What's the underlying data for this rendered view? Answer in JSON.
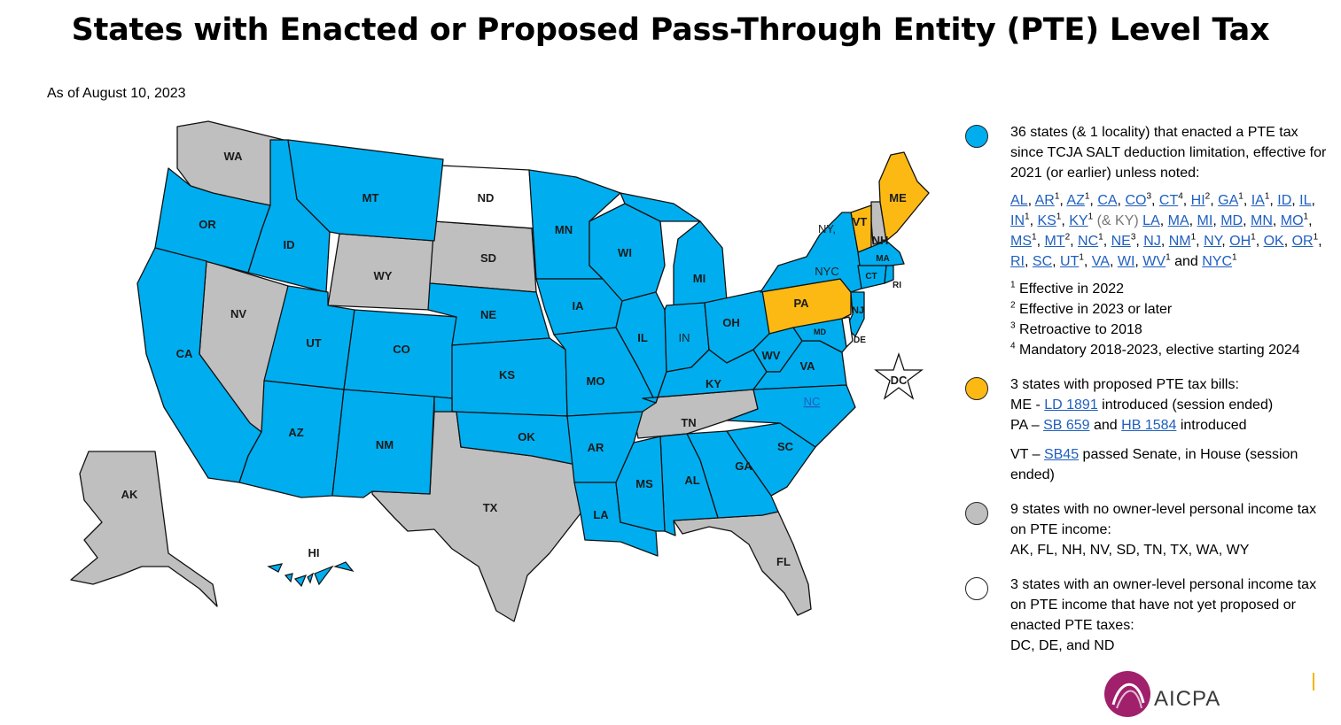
{
  "title": "States with Enacted or Proposed Pass-Through Entity (PTE) Level Tax",
  "as_of": "As of August 10, 2023",
  "colors": {
    "enacted": "#00aeef",
    "proposed": "#fdb913",
    "no_tax": "#bfbfbf",
    "none": "#ffffff",
    "link": "#1f5fbf"
  },
  "map": {
    "labels": {
      "wa": "WA",
      "or": "OR",
      "ca": "CA",
      "id": "ID",
      "nv": "NV",
      "mt": "MT",
      "wy": "WY",
      "ut": "UT",
      "az": "AZ",
      "co": "CO",
      "nm": "NM",
      "nd": "ND",
      "sd": "SD",
      "ne": "NE",
      "ks": "KS",
      "ok": "OK",
      "tx": "TX",
      "mn": "MN",
      "ia": "IA",
      "mo": "MO",
      "ar": "AR",
      "la": "LA",
      "wi": "WI",
      "il": "IL",
      "mi": "MI",
      "in": "IN",
      "oh": "OH",
      "ky": "KY",
      "tn": "TN",
      "ms": "MS",
      "al": "AL",
      "ga": "GA",
      "fl": "FL",
      "sc": "SC",
      "nc": "NC",
      "va": "VA",
      "wv": "WV",
      "pa": "PA",
      "ny": "NY,",
      "nyc": "NYC",
      "vt": "VT",
      "nh": "NH",
      "me": "ME",
      "ma": "MA",
      "ct": "CT",
      "ri": "RI",
      "nj": "NJ",
      "de": "DE",
      "md": "MD",
      "dc": "DC",
      "ak": "AK",
      "hi": "HI"
    }
  },
  "legend": {
    "enacted": {
      "text": "36 states (& 1 locality) that enacted a PTE tax since TCJA SALT deduction limitation, effective for 2021 (or earlier) unless noted:",
      "links": [
        {
          "t": "AL",
          "s": ""
        },
        {
          "t": "AR",
          "s": "1"
        },
        {
          "t": "AZ",
          "s": "1"
        },
        {
          "t": "CA",
          "s": ""
        },
        {
          "t": "CO",
          "s": "3"
        },
        {
          "t": "CT",
          "s": "4"
        },
        {
          "t": "HI",
          "s": "2"
        },
        {
          "t": "GA",
          "s": "1"
        },
        {
          "t": "IA",
          "s": "1"
        },
        {
          "t": "ID",
          "s": ""
        },
        {
          "t": "IL",
          "s": ""
        },
        {
          "t": "IN",
          "s": "1"
        },
        {
          "t": "KS",
          "s": "1"
        },
        {
          "t": "KY",
          "s": "1"
        },
        {
          "t": "(& KY)",
          "s": ""
        },
        {
          "t": "LA",
          "s": ""
        },
        {
          "t": "MA",
          "s": ""
        },
        {
          "t": "MI",
          "s": ""
        },
        {
          "t": "MD",
          "s": ""
        },
        {
          "t": "MN",
          "s": ""
        },
        {
          "t": "MO",
          "s": "1"
        },
        {
          "t": "MS",
          "s": "1"
        },
        {
          "t": "MT",
          "s": "2"
        },
        {
          "t": "NC",
          "s": "1"
        },
        {
          "t": "NE",
          "s": "3"
        },
        {
          "t": "NJ",
          "s": ""
        },
        {
          "t": "NM",
          "s": "1"
        },
        {
          "t": "NY",
          "s": ""
        },
        {
          "t": "OH",
          "s": "1"
        },
        {
          "t": "OK",
          "s": ""
        },
        {
          "t": "OR",
          "s": "1"
        },
        {
          "t": "RI",
          "s": ""
        },
        {
          "t": "SC",
          "s": ""
        },
        {
          "t": "UT",
          "s": "1"
        },
        {
          "t": "VA",
          "s": ""
        },
        {
          "t": "WI",
          "s": ""
        },
        {
          "t": "WV",
          "s": "1"
        },
        {
          "t": "NYC",
          "s": "1"
        }
      ],
      "and_word": "and",
      "notes": [
        {
          "s": "1",
          "t": "Effective in 2022"
        },
        {
          "s": "2",
          "t": "Effective in 2023 or later"
        },
        {
          "s": "3",
          "t": "Retroactive to 2018"
        },
        {
          "s": "4",
          "t": "Mandatory 2018-2023, elective starting 2024"
        }
      ]
    },
    "proposed": {
      "heading": "3 states with proposed PTE tax bills:",
      "me_prefix": "ME - ",
      "me_link": "LD 1891",
      "me_suffix": " introduced (session ended)",
      "pa_prefix": "PA – ",
      "pa_link1": "SB 659",
      "pa_mid": " and ",
      "pa_link2": "HB 1584",
      "pa_suffix": " introduced",
      "vt_prefix": "VT – ",
      "vt_link": "SB45",
      "vt_suffix": "  passed Senate, in House (session ended)"
    },
    "no_tax": {
      "text": "9 states with no owner-level personal income tax on PTE income:",
      "list": "AK, FL, NH, NV, SD, TN, TX, WA, WY"
    },
    "none": {
      "text": "3 states with an owner-level personal income tax on PTE income that have not yet proposed or enacted PTE taxes:",
      "list": "DC, DE, and ND"
    }
  },
  "logo": {
    "text": "AICPA",
    "tm": "™"
  }
}
